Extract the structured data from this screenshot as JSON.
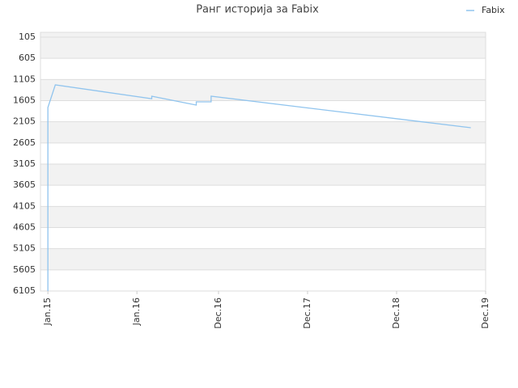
{
  "chart_data": {
    "type": "line",
    "title": "Ранг историја за Fabix",
    "x": [
      "2015-01",
      "2015-01",
      "2015-01",
      "2015-02",
      "2016-03",
      "2016-03",
      "2016-09",
      "2016-09",
      "2016-11",
      "2016-11",
      "2019-10"
    ],
    "series": [
      {
        "name": "Fabix",
        "color": "#90c4ee",
        "values": [
          6105,
          3812,
          1767,
          1232,
          1560,
          1500,
          1710,
          1634,
          1634,
          1500,
          2245
        ]
      }
    ],
    "xlim": [
      "2014-12",
      "2019-12"
    ],
    "xticks": [
      {
        "value": "2015-01",
        "label": "Jan.15"
      },
      {
        "value": "2016-01",
        "label": "Jan.16"
      },
      {
        "value": "2016-12",
        "label": "Dec.16"
      },
      {
        "value": "2017-12",
        "label": "Dec.17"
      },
      {
        "value": "2018-12",
        "label": "Dec.18"
      },
      {
        "value": "2019-12",
        "label": "Dec.19"
      }
    ],
    "ylim": [
      6105,
      -10
    ],
    "yticks": [
      105,
      605,
      1105,
      1605,
      2105,
      2605,
      3105,
      3605,
      4105,
      4605,
      5105,
      5605,
      6105
    ],
    "grid": true,
    "legend": "top-right"
  }
}
